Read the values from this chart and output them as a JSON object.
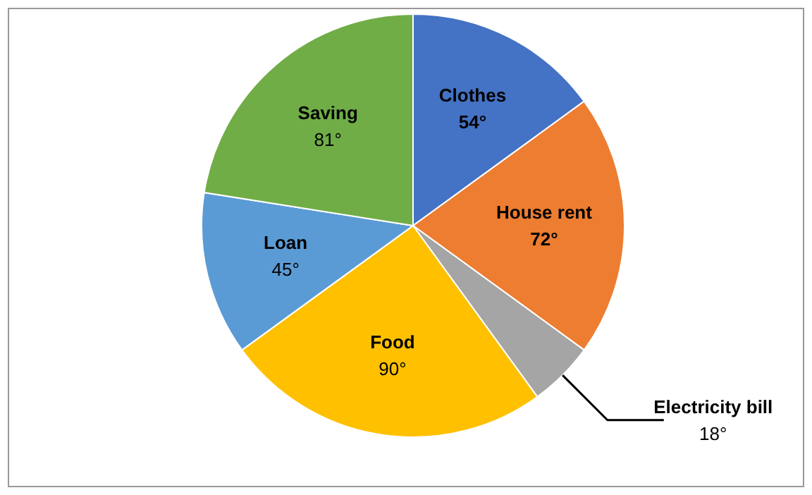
{
  "chart_data": {
    "type": "pie",
    "categories": [
      "Clothes",
      "House rent",
      "Electricity bill",
      "Food",
      "Loan",
      "Saving"
    ],
    "values": [
      54,
      72,
      18,
      90,
      45,
      81
    ],
    "colors": [
      "#4472c4",
      "#ed7d31",
      "#a5a5a5",
      "#ffc000",
      "#5b9bd5",
      "#70ad47"
    ],
    "value_labels": [
      "54°",
      "72°",
      "18°",
      "90°",
      "45°",
      "81°"
    ]
  }
}
